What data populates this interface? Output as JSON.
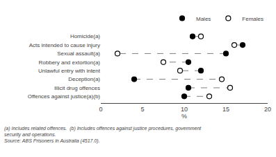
{
  "chart_data": {
    "type": "dumbbell",
    "orientation": "horizontal",
    "categories": [
      "Homicide(a)",
      "Acts intended to cause injury",
      "Sexual assault(a)",
      "Robbery and extortion(a)",
      "Unlawful entry with intent",
      "Deception(a)",
      "Illicit drug offences",
      "Offences against justice(a)(b)"
    ],
    "series": [
      {
        "name": "Males",
        "color": "#000000",
        "marker": "filled",
        "values": [
          11.0,
          17.0,
          15.0,
          10.5,
          12.0,
          4.0,
          10.5,
          10.0
        ]
      },
      {
        "name": "Females",
        "color": "#000000",
        "marker": "open",
        "values": [
          12.0,
          16.0,
          2.0,
          7.5,
          9.5,
          14.5,
          15.5,
          13.0
        ]
      }
    ],
    "xlabel": "%",
    "xlim": [
      0,
      20
    ],
    "xticks": [
      0,
      5,
      10,
      15,
      20
    ],
    "grid": false,
    "legend": "upper right",
    "annotations": [
      "(a) Includes related offences.  (b) Includes offences against justice procedures, government",
      "security and operations.",
      "Source: ABS Prisoners in Australia (4517.0)."
    ]
  }
}
